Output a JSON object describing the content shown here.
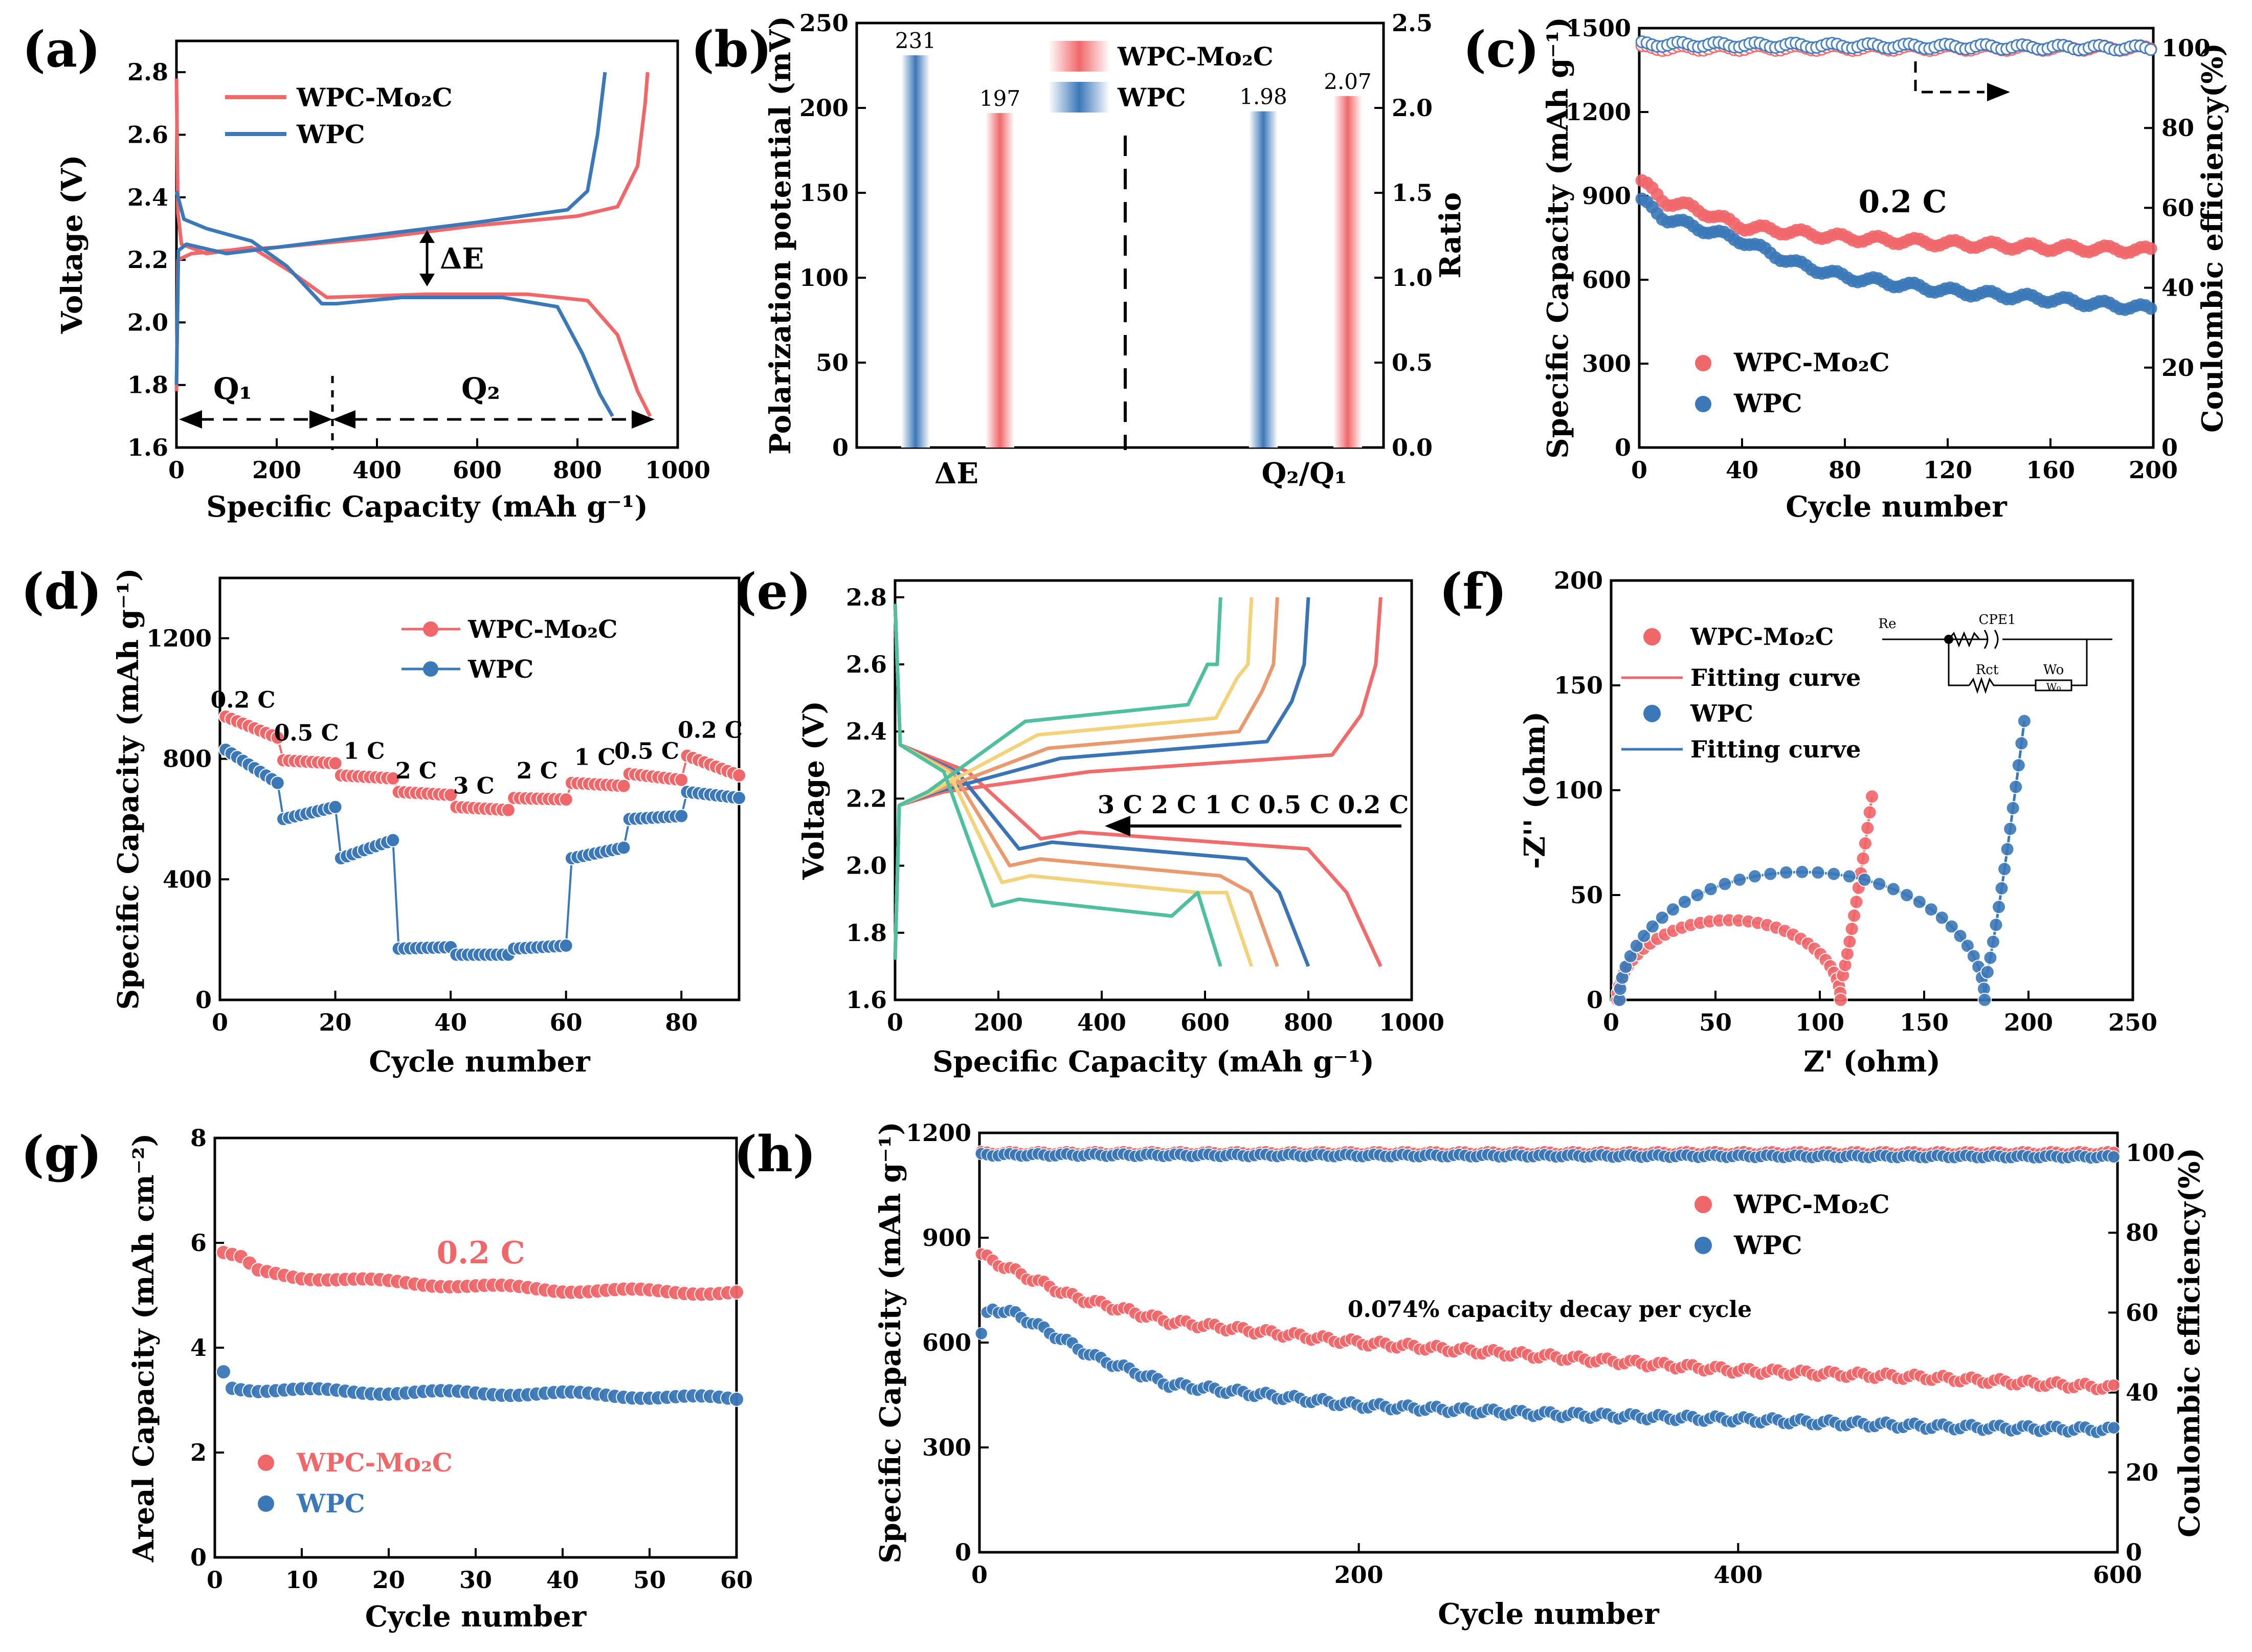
{
  "colors": {
    "red": "#f0676a",
    "blue": "#3b78b8",
    "axis": "#000000",
    "rate": [
      "#f06b6b",
      "#3a74b5",
      "#e89a6e",
      "#f2d27a",
      "#4fbf9e"
    ]
  },
  "chart_data": [
    {
      "id": "a",
      "panel_label": "(a)",
      "type": "line",
      "xlabel": "Specific Capacity (mAh g⁻¹)",
      "ylabel": "Voltage (V)",
      "xlim": [
        0,
        1000
      ],
      "ylim": [
        1.6,
        2.9
      ],
      "xticks": [
        "0",
        "200",
        "400",
        "600",
        "800",
        "1000"
      ],
      "yticks": [
        "1.6",
        "1.8",
        "2.0",
        "2.2",
        "2.4",
        "2.6",
        "2.8"
      ],
      "legend": [
        "WPC-Mo₂C",
        "WPC"
      ],
      "annotations": {
        "delta_e": "ΔE",
        "q1": "Q₁",
        "q2": "Q₂"
      },
      "series": [
        {
          "name": "WPC-Mo₂C discharge",
          "color": "red",
          "points": [
            [
              0,
              2.78
            ],
            [
              3,
              2.35
            ],
            [
              10,
              2.25
            ],
            [
              60,
              2.22
            ],
            [
              150,
              2.24
            ],
            [
              230,
              2.16
            ],
            [
              300,
              2.08
            ],
            [
              500,
              2.09
            ],
            [
              700,
              2.09
            ],
            [
              820,
              2.07
            ],
            [
              880,
              1.96
            ],
            [
              920,
              1.78
            ],
            [
              945,
              1.7
            ]
          ]
        },
        {
          "name": "WPC-Mo₂C charge",
          "color": "red",
          "points": [
            [
              0,
              1.78
            ],
            [
              3,
              2.2
            ],
            [
              30,
              2.22
            ],
            [
              100,
              2.23
            ],
            [
              200,
              2.24
            ],
            [
              400,
              2.27
            ],
            [
              600,
              2.31
            ],
            [
              800,
              2.34
            ],
            [
              880,
              2.37
            ],
            [
              920,
              2.5
            ],
            [
              935,
              2.7
            ],
            [
              940,
              2.8
            ]
          ]
        },
        {
          "name": "WPC discharge",
          "color": "blue",
          "points": [
            [
              0,
              2.42
            ],
            [
              15,
              2.33
            ],
            [
              60,
              2.3
            ],
            [
              150,
              2.26
            ],
            [
              220,
              2.18
            ],
            [
              290,
              2.06
            ],
            [
              320,
              2.06
            ],
            [
              450,
              2.08
            ],
            [
              650,
              2.08
            ],
            [
              760,
              2.05
            ],
            [
              810,
              1.9
            ],
            [
              845,
              1.77
            ],
            [
              870,
              1.7
            ]
          ]
        },
        {
          "name": "WPC charge",
          "color": "blue",
          "points": [
            [
              0,
              1.8
            ],
            [
              4,
              2.23
            ],
            [
              20,
              2.25
            ],
            [
              100,
              2.22
            ],
            [
              200,
              2.24
            ],
            [
              400,
              2.28
            ],
            [
              600,
              2.32
            ],
            [
              780,
              2.36
            ],
            [
              820,
              2.42
            ],
            [
              840,
              2.6
            ],
            [
              855,
              2.8
            ]
          ]
        }
      ]
    },
    {
      "id": "b",
      "panel_label": "(b)",
      "type": "bar",
      "ylabel_left": "Polarization potential (mV)",
      "ylabel_right": "Ratio",
      "ylim_left": [
        0,
        250
      ],
      "ylim_right": [
        0,
        2.5
      ],
      "yticks_left": [
        "0",
        "50",
        "100",
        "150",
        "200",
        "250"
      ],
      "yticks_right": [
        "0.0",
        "0.5",
        "1.0",
        "1.5",
        "2.0",
        "2.5"
      ],
      "categories": [
        "ΔE",
        "Q₂/Q₁"
      ],
      "legend": [
        "WPC-Mo₂C",
        "WPC"
      ],
      "bars": [
        {
          "group": "ΔE",
          "series": "WPC",
          "value": 231,
          "label": "231",
          "axis": "left"
        },
        {
          "group": "ΔE",
          "series": "WPC-Mo₂C",
          "value": 197,
          "label": "197",
          "axis": "left"
        },
        {
          "group": "Q₂/Q₁",
          "series": "WPC",
          "value": 1.98,
          "label": "1.98",
          "axis": "right"
        },
        {
          "group": "Q₂/Q₁",
          "series": "WPC-Mo₂C",
          "value": 2.07,
          "label": "2.07",
          "axis": "right"
        }
      ]
    },
    {
      "id": "c",
      "panel_label": "(c)",
      "type": "scatter",
      "xlabel": "Cycle number",
      "ylabel_left": "Specific Capacity (mAh g⁻¹)",
      "ylabel_right": "Coulombic efficiency(%)",
      "xlim": [
        0,
        200
      ],
      "ylim_left": [
        0,
        1500
      ],
      "ylim_right": [
        0,
        105
      ],
      "xticks": [
        "0",
        "40",
        "80",
        "120",
        "160",
        "200"
      ],
      "yticks_left": [
        "0",
        "300",
        "600",
        "900",
        "1200",
        "1500"
      ],
      "yticks_right": [
        "0",
        "20",
        "40",
        "60",
        "80",
        "100"
      ],
      "rate_label": "0.2 C",
      "legend": [
        "WPC-Mo₂C",
        "WPC"
      ],
      "series": [
        {
          "name": "WPC-Mo₂C",
          "color": "red",
          "curve": [
            [
              1,
              950
            ],
            [
              10,
              880
            ],
            [
              20,
              860
            ],
            [
              40,
              790
            ],
            [
              80,
              750
            ],
            [
              120,
              730
            ],
            [
              160,
              715
            ],
            [
              200,
              705
            ]
          ]
        },
        {
          "name": "WPC",
          "color": "blue",
          "curve": [
            [
              1,
              880
            ],
            [
              10,
              820
            ],
            [
              40,
              740
            ],
            [
              60,
              660
            ],
            [
              80,
              610
            ],
            [
              120,
              560
            ],
            [
              160,
              530
            ],
            [
              200,
              495
            ]
          ]
        },
        {
          "name": "CE WPC-Mo₂C",
          "color": "red",
          "axis": "right",
          "curve": [
            [
              1,
              100
            ],
            [
              200,
              100
            ]
          ]
        },
        {
          "name": "CE WPC",
          "color": "blue",
          "axis": "right",
          "curve": [
            [
              1,
              101
            ],
            [
              200,
              100
            ]
          ]
        }
      ]
    },
    {
      "id": "d",
      "panel_label": "(d)",
      "type": "scatter",
      "xlabel": "Cycle number",
      "ylabel": "Specific Capacity (mAh g⁻¹)",
      "xlim": [
        0,
        90
      ],
      "ylim": [
        0,
        1400
      ],
      "xticks": [
        "0",
        "20",
        "40",
        "60",
        "80"
      ],
      "yticks": [
        "0",
        "400",
        "800",
        "1200"
      ],
      "legend": [
        "WPC-Mo₂C",
        "WPC"
      ],
      "rate_labels": [
        {
          "text": "0.2 C",
          "x": 4,
          "y": 970
        },
        {
          "text": "0.5 C",
          "x": 15,
          "y": 860
        },
        {
          "text": "1 C",
          "x": 25,
          "y": 800
        },
        {
          "text": "2 C",
          "x": 34,
          "y": 735
        },
        {
          "text": "3 C",
          "x": 44,
          "y": 685
        },
        {
          "text": "2 C",
          "x": 55,
          "y": 735
        },
        {
          "text": "1 C",
          "x": 65,
          "y": 780
        },
        {
          "text": "0.5 C",
          "x": 74,
          "y": 800
        },
        {
          "text": "0.2 C",
          "x": 85,
          "y": 870
        }
      ],
      "series": [
        {
          "name": "WPC-Mo₂C",
          "color": "red",
          "segments": [
            [
              940,
              870
            ],
            [
              795,
              785
            ],
            [
              745,
              735
            ],
            [
              690,
              680
            ],
            [
              640,
              630
            ],
            [
              670,
              665
            ],
            [
              720,
              710
            ],
            [
              750,
              730
            ],
            [
              810,
              745
            ]
          ]
        },
        {
          "name": "WPC",
          "color": "blue",
          "segments": [
            [
              830,
              720
            ],
            [
              600,
              640
            ],
            [
              470,
              530
            ],
            [
              170,
              175
            ],
            [
              150,
              150
            ],
            [
              170,
              180
            ],
            [
              470,
              505
            ],
            [
              600,
              610
            ],
            [
              690,
              670
            ]
          ]
        }
      ]
    },
    {
      "id": "e",
      "panel_label": "(e)",
      "type": "line",
      "xlabel": "Specific Capacity (mAh g⁻¹)",
      "ylabel": "Voltage (V)",
      "xlim": [
        0,
        1000
      ],
      "ylim": [
        1.6,
        2.85
      ],
      "xticks": [
        "0",
        "200",
        "400",
        "600",
        "800",
        "1000"
      ],
      "yticks": [
        "1.6",
        "1.8",
        "2.0",
        "2.2",
        "2.4",
        "2.6",
        "2.8"
      ],
      "rate_annotation": "3 C 2 C 1 C 0.5 C 0.2 C",
      "series": [
        {
          "name": "0.2 C",
          "color_index": 0,
          "capacity": 940,
          "lower": 2.1,
          "upper": 2.33
        },
        {
          "name": "0.5 C",
          "color_index": 1,
          "capacity": 800,
          "lower": 2.07,
          "upper": 2.37
        },
        {
          "name": "1 C",
          "color_index": 2,
          "capacity": 740,
          "lower": 2.02,
          "upper": 2.4
        },
        {
          "name": "2 C",
          "color_index": 3,
          "capacity": 690,
          "lower": 1.97,
          "upper": 2.44
        },
        {
          "name": "3 C",
          "color_index": 4,
          "capacity": 630,
          "lower": 1.9,
          "upper": 2.48
        }
      ]
    },
    {
      "id": "f",
      "panel_label": "(f)",
      "type": "scatter",
      "xlabel": "Z' (ohm)",
      "ylabel": "-Z'' (ohm)",
      "xlim": [
        0,
        250
      ],
      "ylim": [
        0,
        200
      ],
      "xticks": [
        "0",
        "50",
        "100",
        "150",
        "200",
        "250"
      ],
      "yticks": [
        "0",
        "50",
        "100",
        "150",
        "200"
      ],
      "legend": [
        "WPC-Mo₂C",
        "Fitting curve",
        "WPC",
        "Fitting curve"
      ],
      "circuit_labels": [
        "Re",
        "CPE1",
        "Rct",
        "Wo",
        "W₀"
      ],
      "series": [
        {
          "name": "WPC-Mo₂C",
          "color": "red",
          "r0": 3,
          "rct": 107,
          "tail_end": [
            125,
            97
          ]
        },
        {
          "name": "WPC",
          "color": "blue",
          "r0": 4,
          "rct": 175,
          "tail_end": [
            198,
            133
          ]
        }
      ]
    },
    {
      "id": "g",
      "panel_label": "(g)",
      "type": "scatter",
      "xlabel": "Cycle number",
      "ylabel": "Areal Capacity (mAh cm⁻²)",
      "xlim": [
        0,
        60
      ],
      "ylim": [
        0,
        8
      ],
      "xticks": [
        "0",
        "10",
        "20",
        "30",
        "40",
        "50",
        "60"
      ],
      "yticks": [
        "0",
        "2",
        "4",
        "6",
        "8"
      ],
      "rate_label": "0.2 C",
      "legend": [
        "WPC-Mo₂C",
        "WPC"
      ],
      "series": [
        {
          "name": "WPC-Mo₂C",
          "color": "red",
          "curve": [
            [
              1,
              5.8
            ],
            [
              3,
              5.7
            ],
            [
              5,
              5.45
            ],
            [
              10,
              5.35
            ],
            [
              20,
              5.25
            ],
            [
              40,
              5.1
            ],
            [
              60,
              5.05
            ]
          ]
        },
        {
          "name": "WPC",
          "color": "blue",
          "curve": [
            [
              1,
              3.55
            ],
            [
              2,
              3.25
            ],
            [
              5,
              3.2
            ],
            [
              20,
              3.15
            ],
            [
              40,
              3.12
            ],
            [
              60,
              3.02
            ]
          ]
        }
      ]
    },
    {
      "id": "h",
      "panel_label": "(h)",
      "type": "scatter",
      "xlabel": "Cycle number",
      "ylabel_left": "Specific Capacity (mAh g⁻¹)",
      "ylabel_right": "Coulombic efficiency(%)",
      "xlim": [
        0,
        600
      ],
      "ylim_left": [
        0,
        1200
      ],
      "ylim_right": [
        0,
        105
      ],
      "xticks": [
        "0",
        "200",
        "400",
        "600"
      ],
      "yticks_left": [
        "0",
        "300",
        "600",
        "900",
        "1200"
      ],
      "yticks_right": [
        "0",
        "20",
        "40",
        "60",
        "80",
        "100"
      ],
      "annotation": "0.074% capacity decay per cycle",
      "legend": [
        "WPC-Mo₂C",
        "WPC"
      ],
      "series": [
        {
          "name": "WPC-Mo₂C",
          "color": "red",
          "curve": [
            [
              1,
              850
            ],
            [
              20,
              800
            ],
            [
              50,
              730
            ],
            [
              100,
              660
            ],
            [
              200,
              600
            ],
            [
              300,
              560
            ],
            [
              400,
              520
            ],
            [
              500,
              500
            ],
            [
              600,
              470
            ]
          ]
        },
        {
          "name": "WPC",
          "color": "blue",
          "curve": [
            [
              1,
              620
            ],
            [
              5,
              700
            ],
            [
              20,
              680
            ],
            [
              60,
              560
            ],
            [
              100,
              480
            ],
            [
              200,
              420
            ],
            [
              300,
              395
            ],
            [
              400,
              380
            ],
            [
              500,
              360
            ],
            [
              600,
              350
            ]
          ]
        },
        {
          "name": "CE WPC-Mo₂C",
          "color": "red",
          "axis": "right",
          "curve": [
            [
              1,
              100
            ],
            [
              600,
              100
            ]
          ]
        },
        {
          "name": "CE WPC",
          "color": "blue",
          "axis": "right",
          "curve": [
            [
              1,
              99.5
            ],
            [
              600,
              99
            ]
          ]
        }
      ]
    }
  ]
}
